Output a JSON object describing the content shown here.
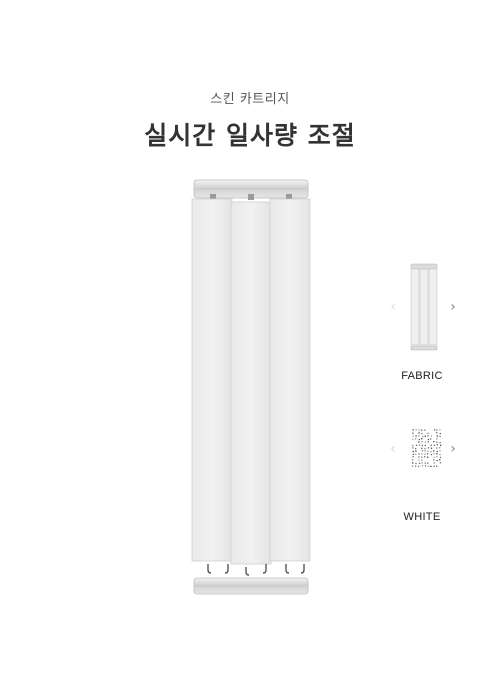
{
  "header": {
    "subtitle": "스킨 카트리지",
    "title": "실시간 일사량 조절"
  },
  "product": {
    "name": "vertical-blind",
    "slat_count": 3,
    "fabric_color": "#efefef",
    "rail_color": "#d6d6d6"
  },
  "options": {
    "fabric": {
      "label": "FABRIC",
      "prev_icon": "chevron-left-icon",
      "next_icon": "chevron-right-icon",
      "prev_glyph": "‹",
      "next_glyph": "›"
    },
    "color": {
      "label": "WHITE",
      "prev_icon": "chevron-left-icon",
      "next_icon": "chevron-right-icon",
      "prev_glyph": "‹",
      "next_glyph": "›"
    }
  }
}
